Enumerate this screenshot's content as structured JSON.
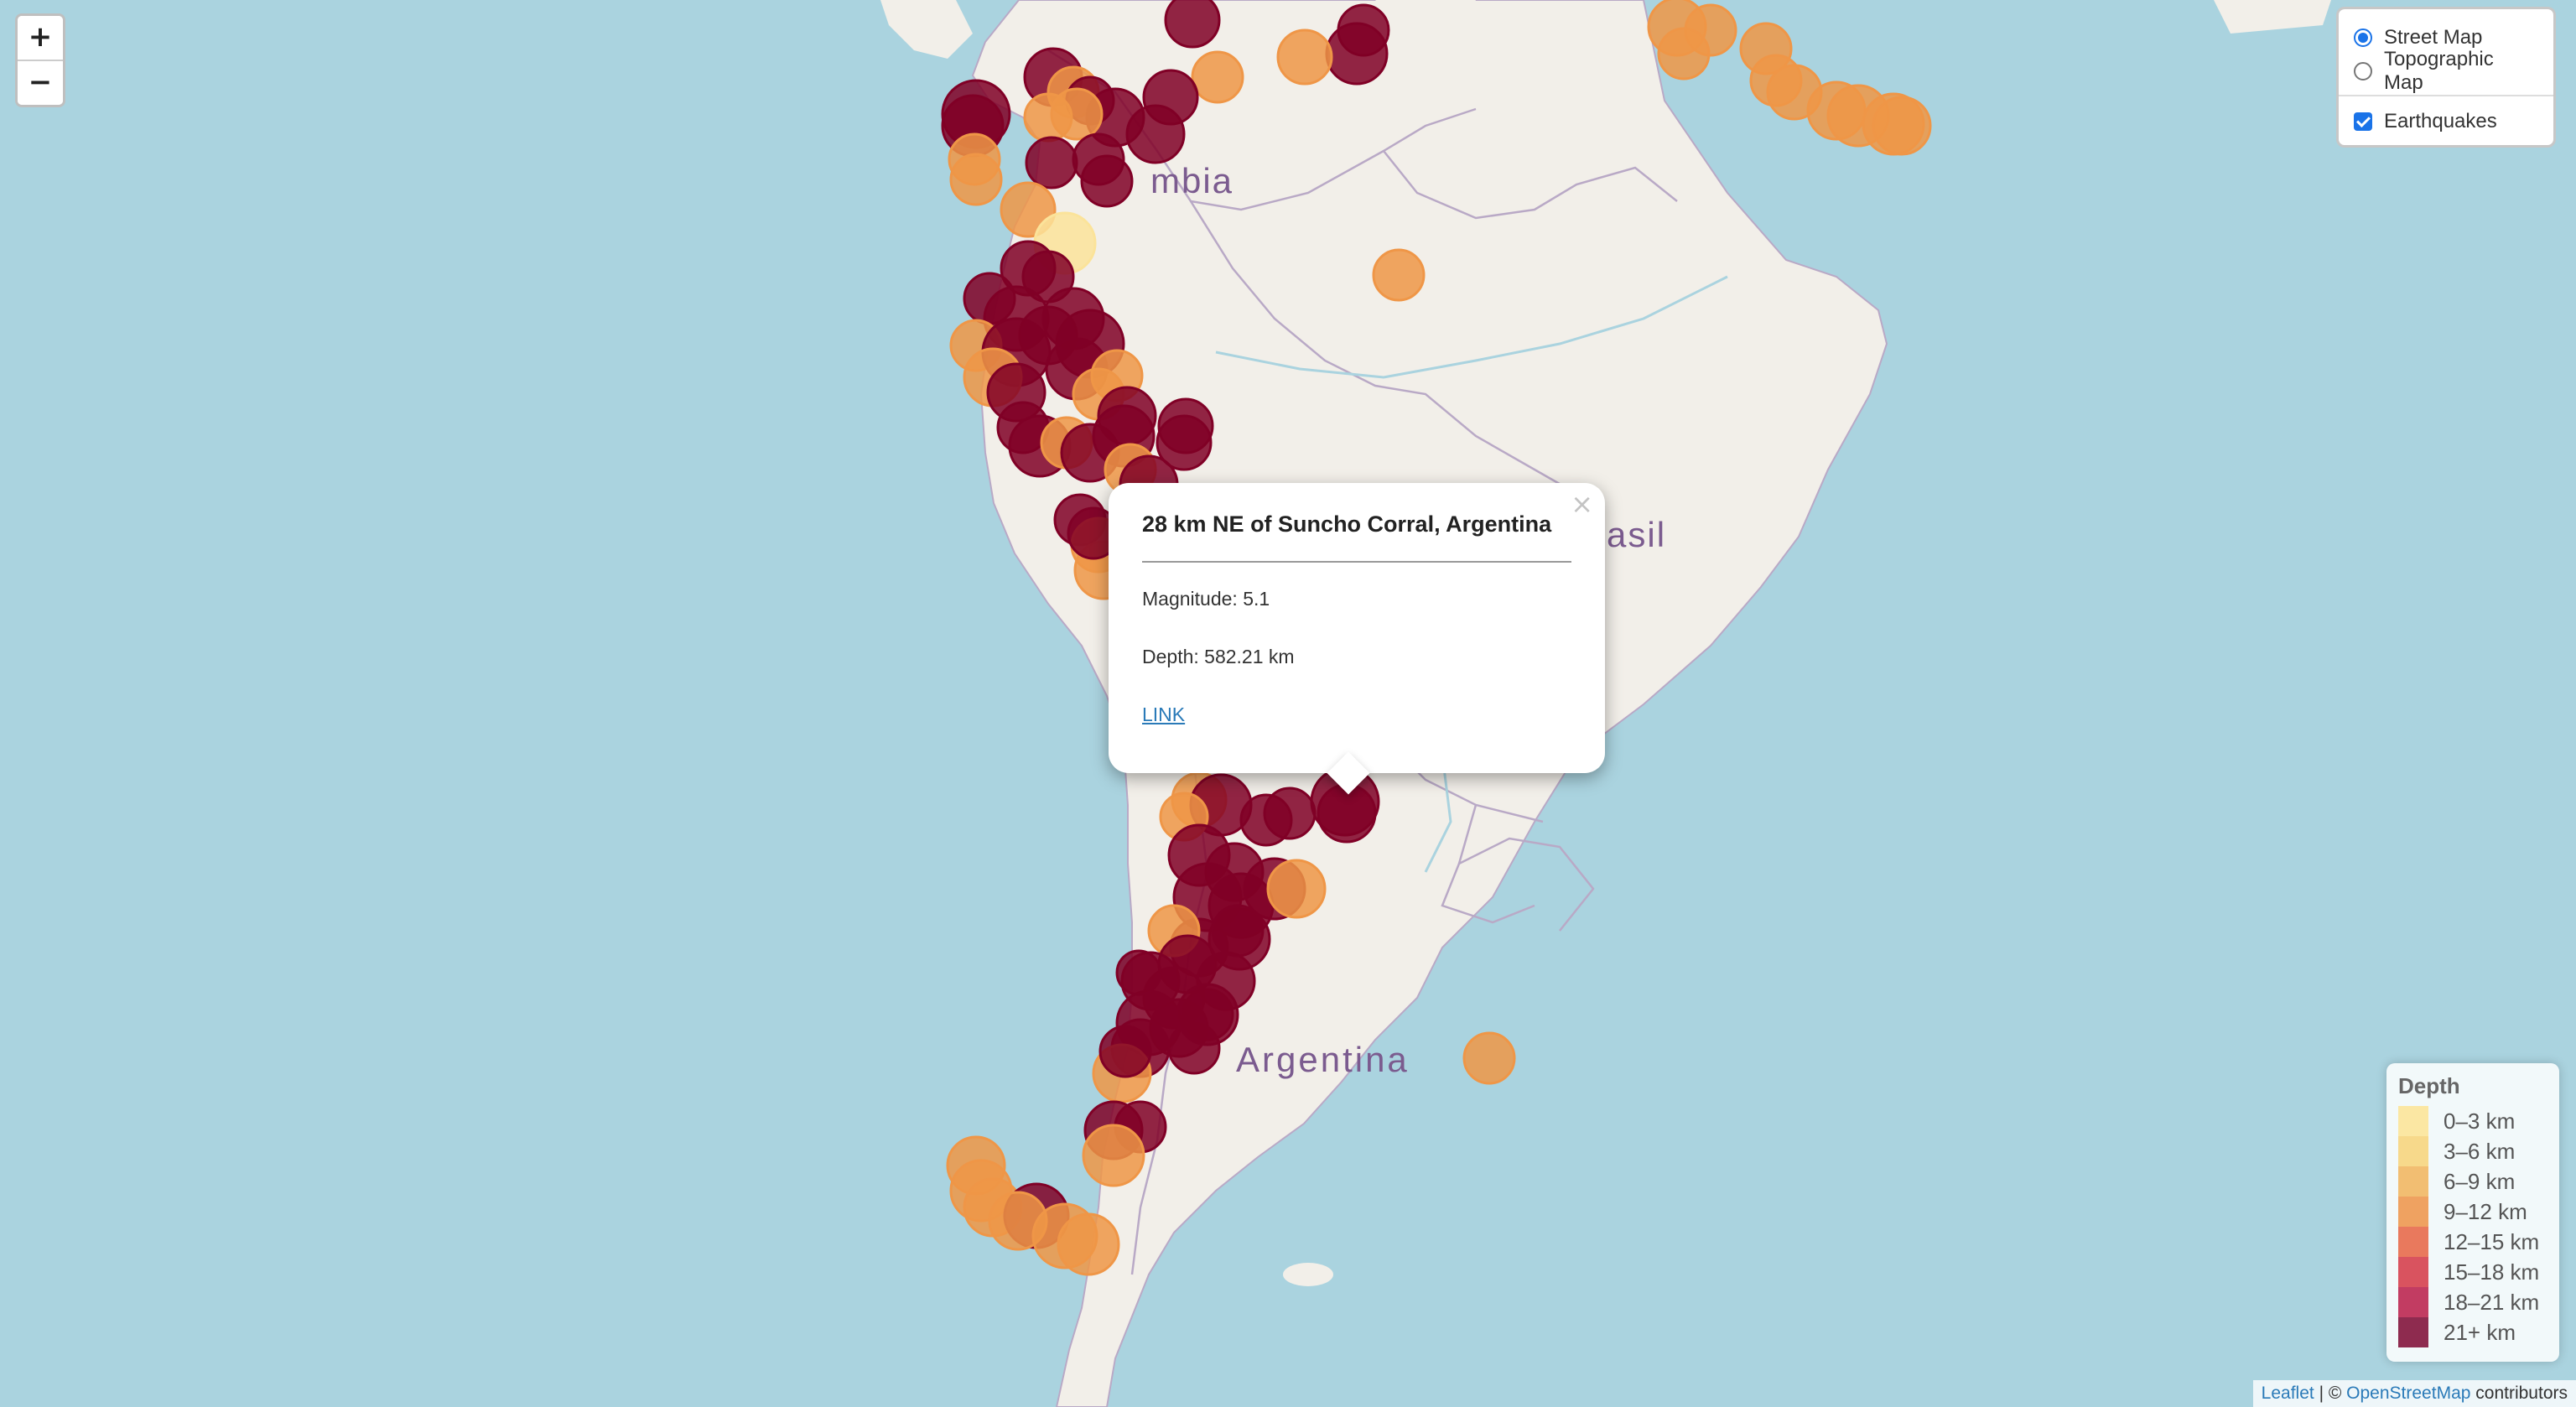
{
  "zoom": {
    "in_label": "+",
    "out_label": "−"
  },
  "layers": {
    "base": [
      {
        "label": "Street Map",
        "selected": true
      },
      {
        "label": "Topographic Map",
        "selected": false
      }
    ],
    "overlays": [
      {
        "label": "Earthquakes",
        "checked": true
      }
    ]
  },
  "map_labels": {
    "colombia": "mbia",
    "brasil": "asil",
    "argentina": "Argentina"
  },
  "popup": {
    "close": "×",
    "title": "28 km NE of Suncho Corral, Argentina",
    "magnitude": "Magnitude: 5.1",
    "depth": "Depth: 582.21 km",
    "link": "LINK"
  },
  "legend": {
    "title": "Depth",
    "items": [
      {
        "label": "0–3 km",
        "color": "#fbe7a3"
      },
      {
        "label": "3–6 km",
        "color": "#f7d98b"
      },
      {
        "label": "6–9 km",
        "color": "#f2be72"
      },
      {
        "label": "9–12 km",
        "color": "#efa261"
      },
      {
        "label": "12–15 km",
        "color": "#e9795d"
      },
      {
        "label": "15–18 km",
        "color": "#d9535f"
      },
      {
        "label": "18–21 km",
        "color": "#c23c62"
      },
      {
        "label": "21+ km",
        "color": "#8e2b4f"
      }
    ]
  },
  "attribution": {
    "leaflet": "Leaflet",
    "sep": " | © ",
    "osm": "OpenStreetMap",
    "suffix": " contributors"
  },
  "colors": {
    "ocean": "#aad3df",
    "land": "#f2efe9",
    "deep": "#800026",
    "mid": "#ef9647",
    "shallow": "#fbe39a"
  }
}
